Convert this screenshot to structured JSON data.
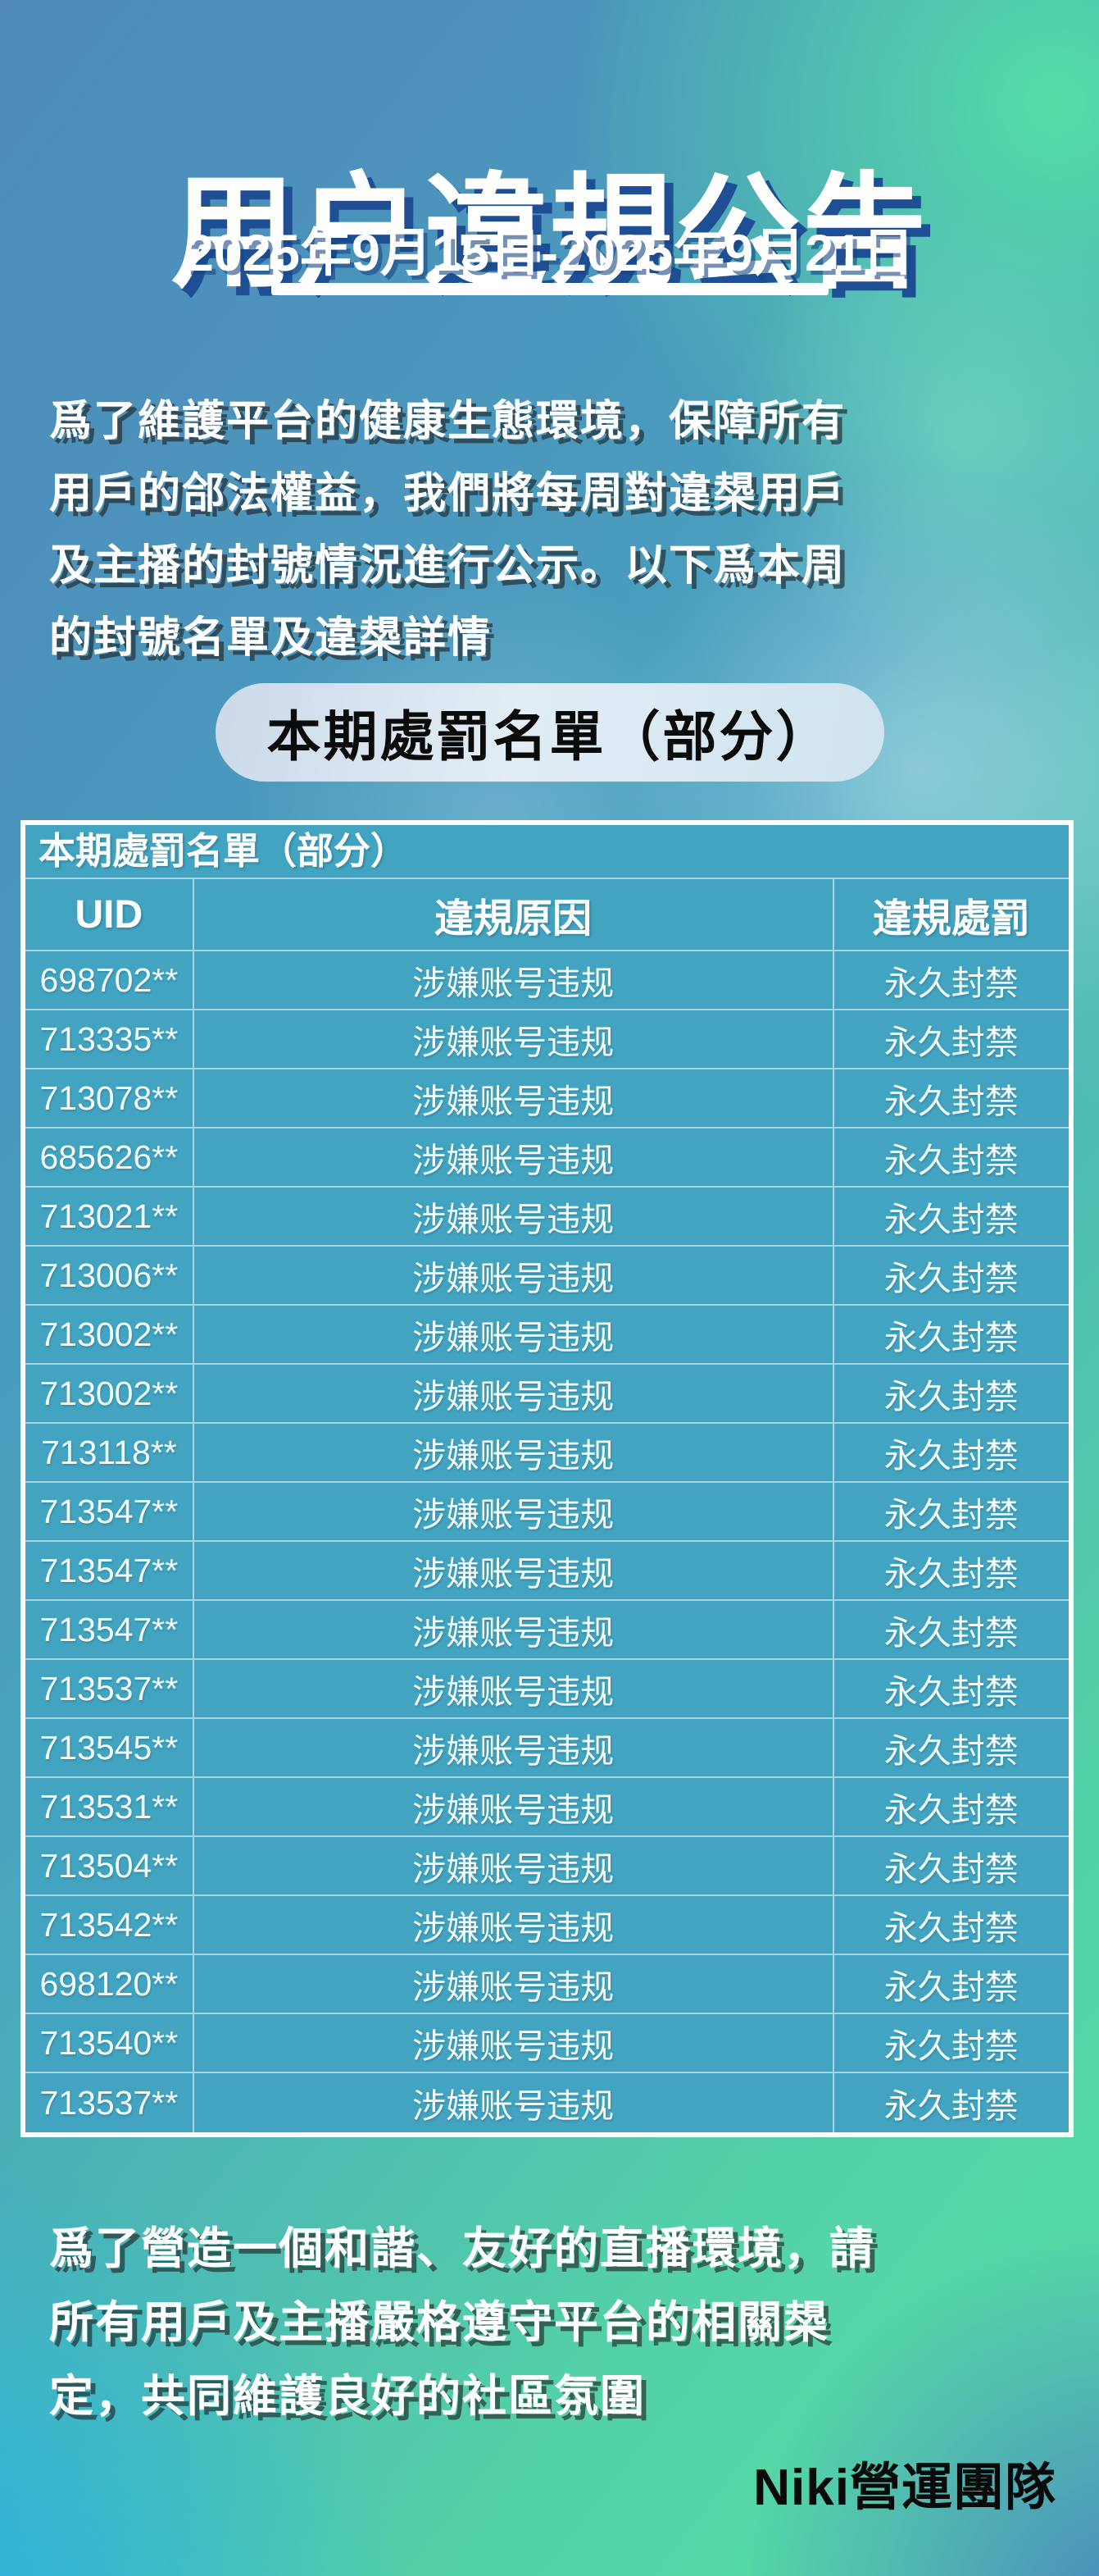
{
  "poster": {
    "title": "用户違規公告",
    "date_range": "2025年9月15日-2025年9月21日",
    "intro": "爲了維護平台的健康生態環境，保障所有\n用戶的郃法權益，我們將每周對違槼用戶\n及主播的封號情況進行公示。以下爲本周\n的封號名單及違槼詳情",
    "section_pill": "本期處罰名單（部分）",
    "footer_note": "爲了營造一個和諧、友好的直播環境，請\n所有用戶及主播嚴格遵守平台的相關槼\n定，共同維護良好的社區氛圍",
    "signature": "Niki營運團隊"
  },
  "table": {
    "title": "本期處罰名單（部分）",
    "columns": [
      "UID",
      "違規原因",
      "違規處罰"
    ],
    "rows": [
      [
        "698702**",
        "涉嫌账号违规",
        "永久封禁"
      ],
      [
        "713335**",
        "涉嫌账号违规",
        "永久封禁"
      ],
      [
        "713078**",
        "涉嫌账号违规",
        "永久封禁"
      ],
      [
        "685626**",
        "涉嫌账号违规",
        "永久封禁"
      ],
      [
        "713021**",
        "涉嫌账号违规",
        "永久封禁"
      ],
      [
        "713006**",
        "涉嫌账号违规",
        "永久封禁"
      ],
      [
        "713002**",
        "涉嫌账号违规",
        "永久封禁"
      ],
      [
        "713002**",
        "涉嫌账号违规",
        "永久封禁"
      ],
      [
        "713118**",
        "涉嫌账号违规",
        "永久封禁"
      ],
      [
        "713547**",
        "涉嫌账号违规",
        "永久封禁"
      ],
      [
        "713547**",
        "涉嫌账号违规",
        "永久封禁"
      ],
      [
        "713547**",
        "涉嫌账号违规",
        "永久封禁"
      ],
      [
        "713537**",
        "涉嫌账号违规",
        "永久封禁"
      ],
      [
        "713545**",
        "涉嫌账号违规",
        "永久封禁"
      ],
      [
        "713531**",
        "涉嫌账号违规",
        "永久封禁"
      ],
      [
        "713504**",
        "涉嫌账号违规",
        "永久封禁"
      ],
      [
        "713542**",
        "涉嫌账号违规",
        "永久封禁"
      ],
      [
        "698120**",
        "涉嫌账号违规",
        "永久封禁"
      ],
      [
        "713540**",
        "涉嫌账号违规",
        "永久封禁"
      ],
      [
        "713537**",
        "涉嫌账号违规",
        "永久封禁"
      ]
    ]
  },
  "colors": {
    "bg_top_left": "#4e89ba",
    "bg_top_right": "#55dfa5",
    "bg_bottom_left": "#2bb3e4",
    "bg_bottom_right": "#4a7ec2",
    "table_fill": "#42a4c1",
    "table_border": "#ffffff",
    "title_shadow": "#1e4f95",
    "pill_fill": "#d8e5f0",
    "text_white": "#ffffff",
    "text_black": "#0b0b0b"
  }
}
